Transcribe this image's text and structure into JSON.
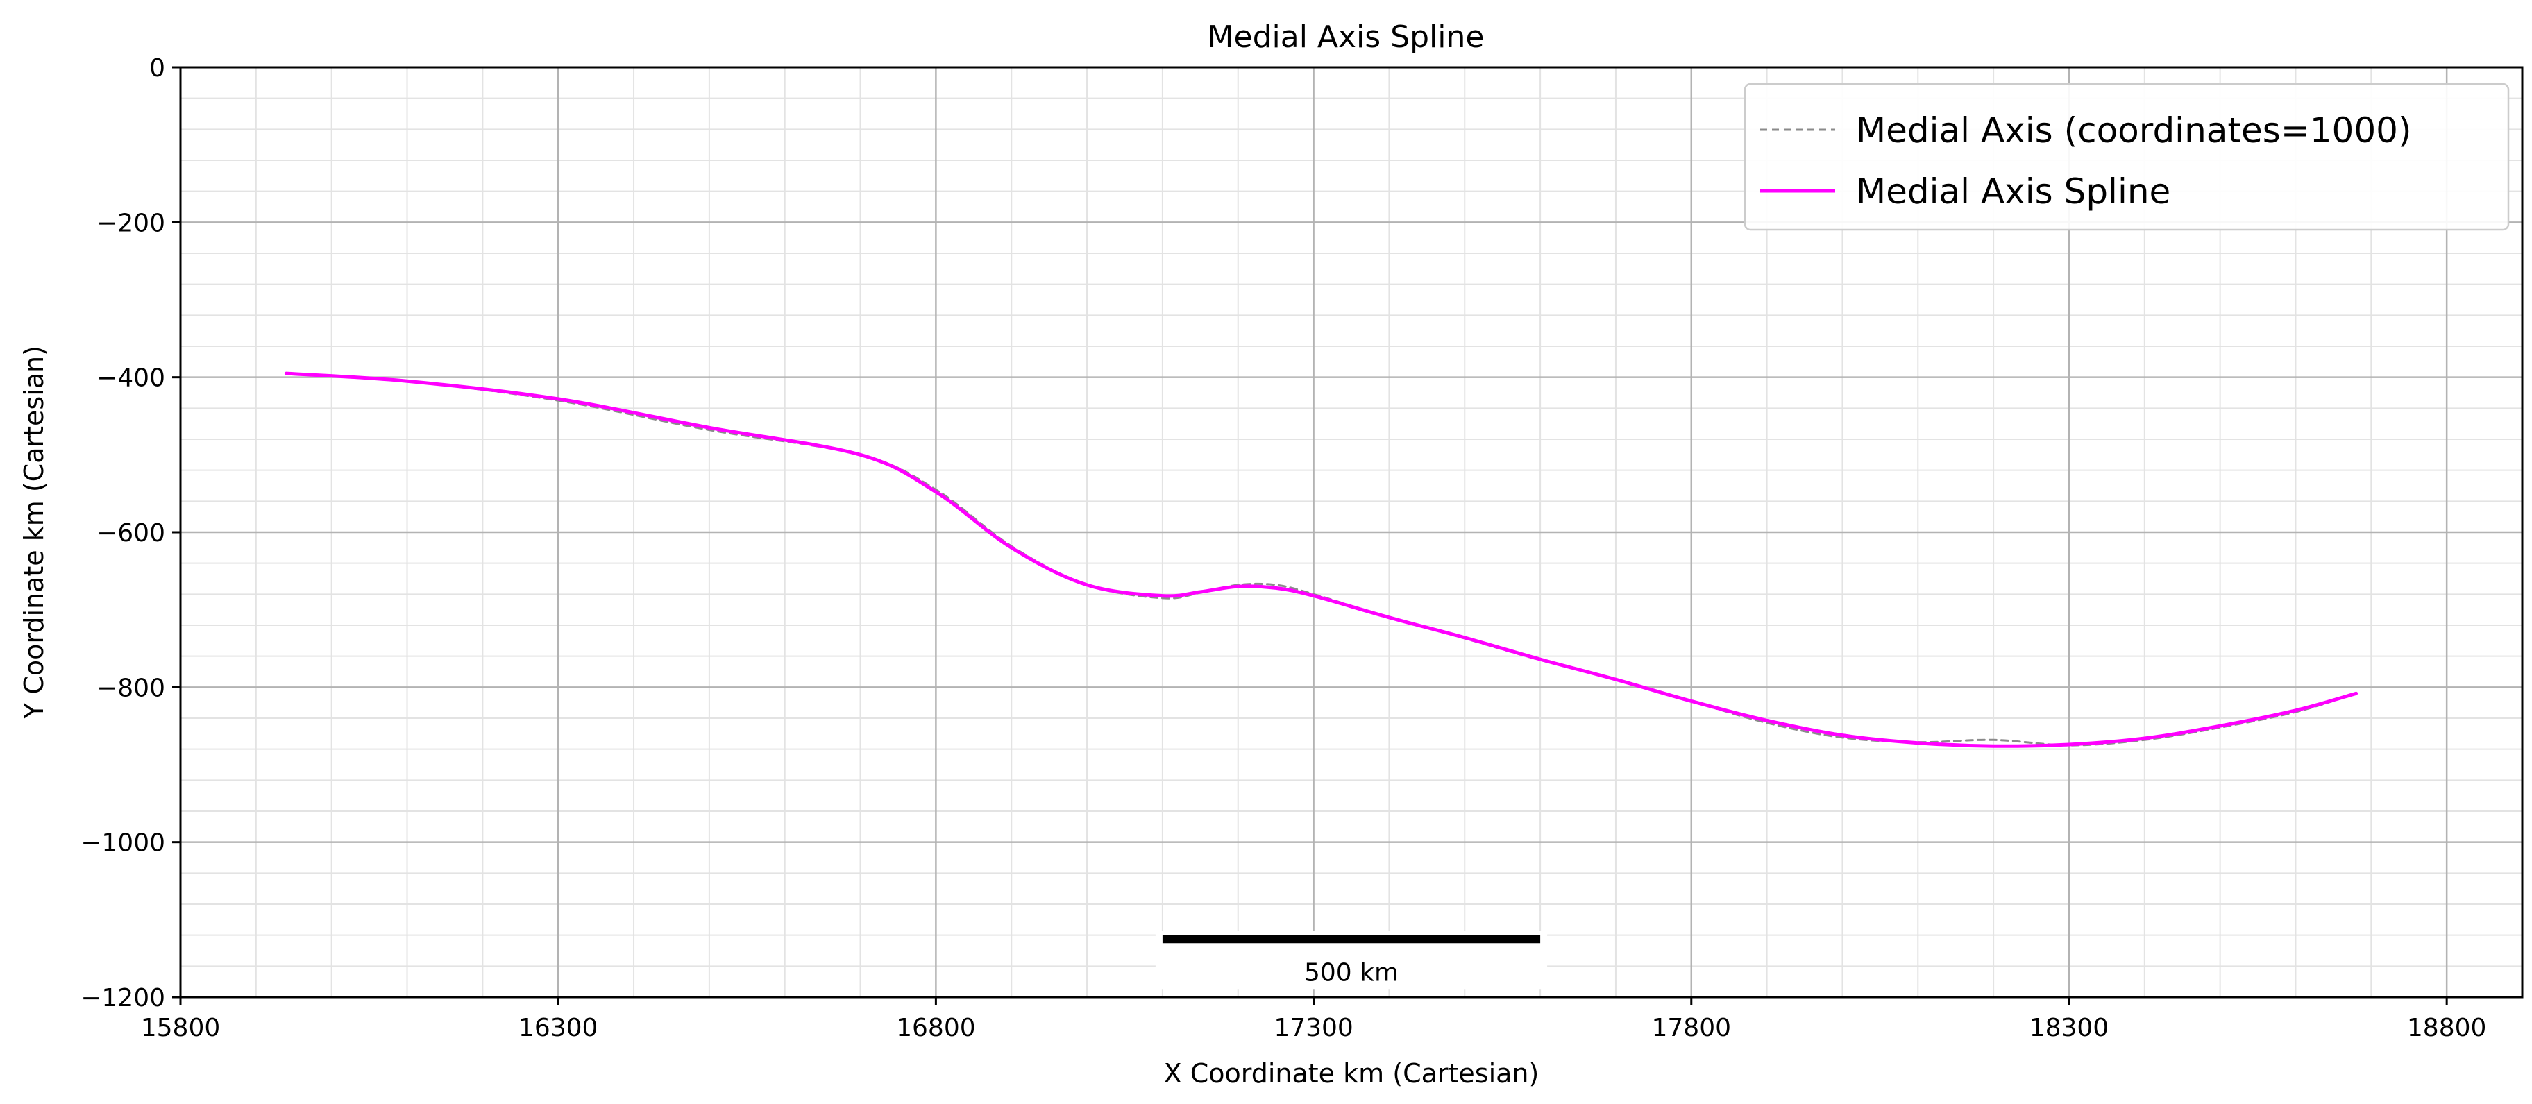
{
  "chart_data": {
    "type": "line",
    "title": "Medial Axis Spline",
    "xlabel": "X Coordinate km (Cartesian)",
    "ylabel": "Y Coordinate km (Cartesian)",
    "xlim": [
      15800,
      18900
    ],
    "ylim": [
      -1200,
      0
    ],
    "x_ticks": [
      15800,
      16300,
      16800,
      17300,
      17800,
      18300,
      18800
    ],
    "y_ticks": [
      0,
      -200,
      -400,
      -600,
      -800,
      -1000,
      -1200
    ],
    "x_minor_step": 100,
    "y_minor_step": 40,
    "grid": true,
    "legend_position": "top-right",
    "series": [
      {
        "name": "Medial Axis (coordinates=1000)",
        "style": "dashed",
        "color": "#8a8a8a",
        "x": [
          15940,
          16100,
          16300,
          16500,
          16700,
          16800,
          16900,
          17000,
          17100,
          17150,
          17200,
          17250,
          17300,
          17400,
          17500,
          17600,
          17700,
          17800,
          17900,
          18000,
          18100,
          18200,
          18300,
          18400,
          18500,
          18600,
          18680
        ],
        "y": [
          -395,
          -405,
          -430,
          -468,
          -500,
          -545,
          -618,
          -668,
          -685,
          -678,
          -668,
          -668,
          -680,
          -710,
          -737,
          -765,
          -790,
          -818,
          -846,
          -865,
          -871,
          -868,
          -875,
          -868,
          -852,
          -832,
          -808
        ]
      },
      {
        "name": "Medial Axis Spline",
        "style": "solid",
        "color": "#ff00ff",
        "x": [
          15940,
          16100,
          16300,
          16500,
          16700,
          16800,
          16900,
          17000,
          17100,
          17150,
          17200,
          17250,
          17300,
          17400,
          17500,
          17600,
          17700,
          17800,
          17900,
          18000,
          18100,
          18200,
          18300,
          18400,
          18500,
          18600,
          18680
        ],
        "y": [
          -395,
          -405,
          -428,
          -465,
          -500,
          -548,
          -620,
          -668,
          -682,
          -677,
          -670,
          -672,
          -682,
          -710,
          -736,
          -764,
          -790,
          -818,
          -843,
          -862,
          -872,
          -876,
          -874,
          -866,
          -850,
          -830,
          -808
        ]
      }
    ],
    "scale_bar": {
      "label": "500 km",
      "length": 500,
      "x_start": 17100,
      "y": -1125
    }
  }
}
